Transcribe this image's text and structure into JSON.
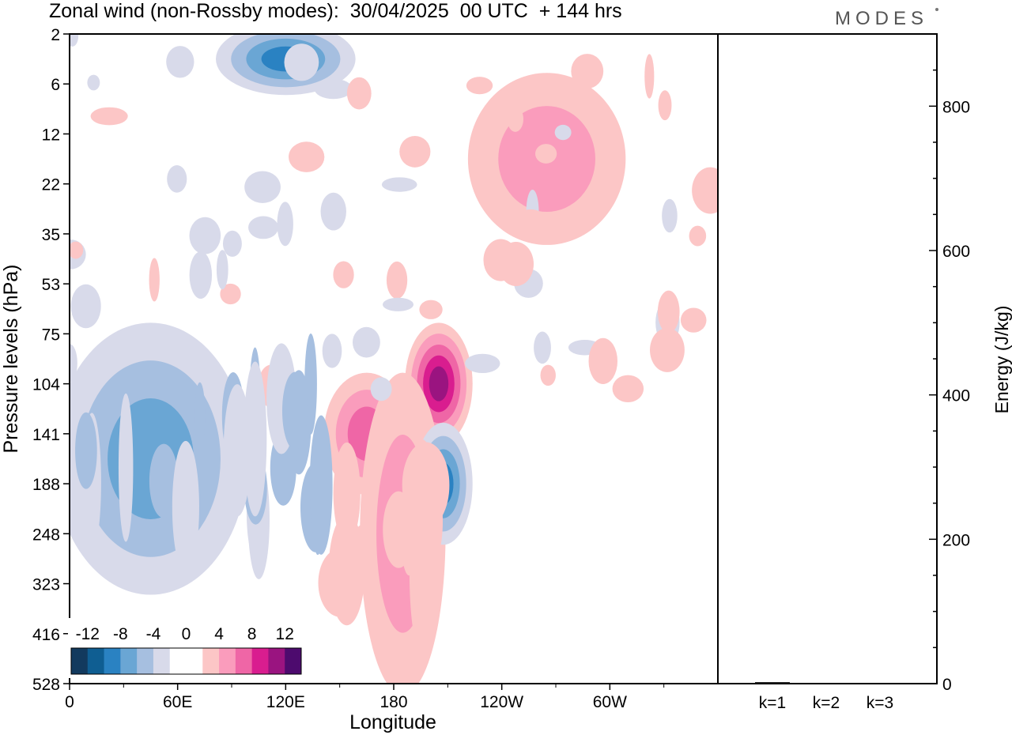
{
  "header": {
    "title": "Zonal wind (non-Rossby modes):  30/04/2025  00 UTC  + 144 hrs",
    "brand": "MODES"
  },
  "chart_data": [
    {
      "type": "heatmap",
      "title": "Zonal wind (non-Rossby modes):  30/04/2025  00 UTC  + 144 hrs",
      "xlabel": "Longitude",
      "ylabel": "Pressure levels (hPa)",
      "x_ticks": [
        "0",
        "60E",
        "120E",
        "180",
        "120W",
        "60W"
      ],
      "y_ticks": [
        "2",
        "6",
        "12",
        "22",
        "35",
        "53",
        "75",
        "104",
        "141",
        "188",
        "248",
        "323",
        "416",
        "528"
      ],
      "colorbar": {
        "labels": [
          "-12",
          "-8",
          "-4",
          "0",
          "4",
          "8",
          "12"
        ],
        "colors": [
          "#123a5e",
          "#0f5e92",
          "#2a82c2",
          "#6aa6d4",
          "#a6bfe0",
          "#d8daea",
          "#ffffff",
          "#ffffff",
          "#fcc6c6",
          "#fa9cbc",
          "#ef66a6",
          "#d91d8f",
          "#9a1480",
          "#4d0b6e"
        ]
      },
      "features": [
        {
          "sign": "positive",
          "lon_range": [
            195,
            215
          ],
          "level_range": [
            "75",
            "141"
          ],
          "peak": 9
        },
        {
          "sign": "positive",
          "lon_range": [
            150,
            180
          ],
          "level_range": [
            "104",
            "188"
          ],
          "peak": 6
        },
        {
          "sign": "positive",
          "lon_range": [
            170,
            200
          ],
          "level_range": [
            "104",
            "528"
          ],
          "peak": 4
        },
        {
          "sign": "negative",
          "lon_range": [
            200,
            215
          ],
          "level_range": [
            "141",
            "248"
          ],
          "peak": -7
        },
        {
          "sign": "negative",
          "lon_range": [
            0,
            90
          ],
          "level_range": [
            "75",
            "323"
          ],
          "peak": -5
        },
        {
          "sign": "negative",
          "lon_range": [
            90,
            150
          ],
          "level_range": [
            "2",
            "6"
          ],
          "peak": -8
        },
        {
          "sign": "positive",
          "lon_range": [
            230,
            300
          ],
          "level_range": [
            "6",
            "35"
          ],
          "peak": 3
        }
      ]
    },
    {
      "type": "bar",
      "categories": [
        "k=1",
        "k=2",
        "k=3"
      ],
      "values": [
        2,
        1,
        1
      ],
      "ylabel": "Energy (J/kg)",
      "ylim": [
        0,
        900
      ],
      "y_ticks": [
        0,
        200,
        400,
        600,
        800
      ]
    }
  ]
}
